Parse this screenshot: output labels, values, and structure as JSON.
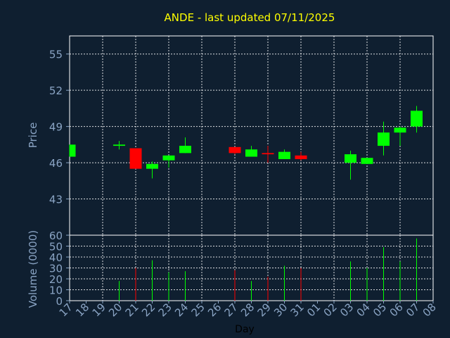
{
  "chart_data": {
    "type": "candlestick",
    "title": "ANDE - last updated 07/11/2025",
    "xlabel": "Day",
    "price_panel": {
      "ylabel": "Price",
      "ylim": [
        40,
        56.5
      ],
      "yticks": [
        43,
        46,
        49,
        52,
        55
      ]
    },
    "volume_panel": {
      "ylabel": "Volume (0000)",
      "ylim": [
        0,
        60
      ],
      "yticks": [
        0,
        10,
        20,
        30,
        40,
        50,
        60
      ]
    },
    "x_ticks": [
      "17",
      "18",
      "19",
      "20",
      "21",
      "22",
      "23",
      "24",
      "25",
      "26",
      "27",
      "28",
      "29",
      "30",
      "31",
      "01",
      "02",
      "03",
      "04",
      "05",
      "06",
      "07",
      "08"
    ],
    "up_color": "#00ff00",
    "down_color": "#ff0000",
    "grid": true,
    "candles": [
      {
        "day": "17",
        "open": 46.5,
        "high": 47.5,
        "low": 46.5,
        "close": 47.5,
        "volume": 0
      },
      {
        "day": "20",
        "open": 47.4,
        "high": 47.8,
        "low": 47.1,
        "close": 47.5,
        "volume": 18
      },
      {
        "day": "21",
        "open": 47.2,
        "high": 47.2,
        "low": 45.5,
        "close": 45.5,
        "volume": 30
      },
      {
        "day": "22",
        "open": 45.5,
        "high": 46.1,
        "low": 44.7,
        "close": 45.9,
        "volume": 37
      },
      {
        "day": "23",
        "open": 46.2,
        "high": 46.6,
        "low": 45.6,
        "close": 46.6,
        "volume": 26
      },
      {
        "day": "24",
        "open": 46.8,
        "high": 48.1,
        "low": 46.8,
        "close": 47.4,
        "volume": 27
      },
      {
        "day": "27",
        "open": 47.3,
        "high": 47.3,
        "low": 46.7,
        "close": 46.8,
        "volume": 28
      },
      {
        "day": "28",
        "open": 46.5,
        "high": 47.4,
        "low": 46.5,
        "close": 47.1,
        "volume": 18
      },
      {
        "day": "29",
        "open": 46.8,
        "high": 47.4,
        "low": 46.0,
        "close": 46.7,
        "volume": 22
      },
      {
        "day": "30",
        "open": 46.3,
        "high": 47.1,
        "low": 46.3,
        "close": 46.9,
        "volume": 32
      },
      {
        "day": "31",
        "open": 46.6,
        "high": 46.9,
        "low": 46.2,
        "close": 46.3,
        "volume": 30
      },
      {
        "day": "03",
        "open": 46.0,
        "high": 47.0,
        "low": 44.6,
        "close": 46.7,
        "volume": 36
      },
      {
        "day": "04",
        "open": 45.9,
        "high": 46.4,
        "low": 45.9,
        "close": 46.4,
        "volume": 30
      },
      {
        "day": "05",
        "open": 47.4,
        "high": 49.4,
        "low": 46.6,
        "close": 48.5,
        "volume": 49
      },
      {
        "day": "06",
        "open": 48.5,
        "high": 49.0,
        "low": 47.4,
        "close": 48.9,
        "volume": 36
      },
      {
        "day": "07",
        "open": 49.0,
        "high": 50.7,
        "low": 48.5,
        "close": 50.3,
        "volume": 57
      }
    ]
  }
}
